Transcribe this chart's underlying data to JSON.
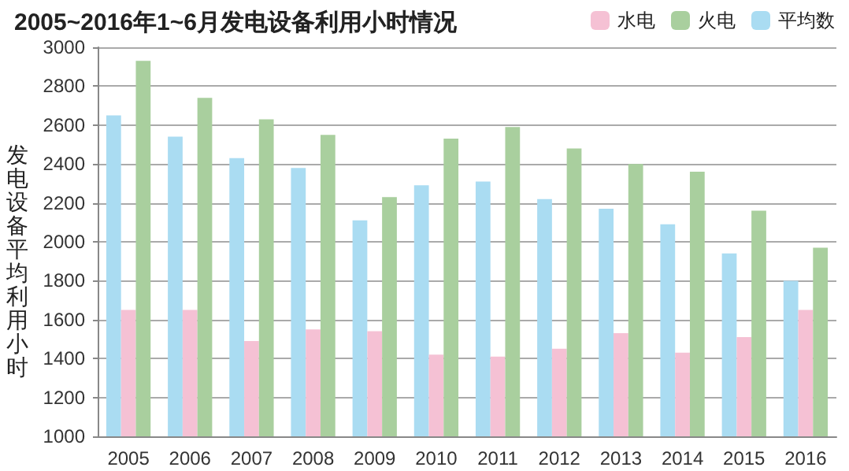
{
  "chart_data": {
    "type": "bar",
    "title": "2005~2016年1~6月发电设备利用小时情况",
    "ylabel": "发电设备平均利用小时",
    "categories": [
      "2005",
      "2006",
      "2007",
      "2008",
      "2009",
      "2010",
      "2011",
      "2012",
      "2013",
      "2014",
      "2015",
      "2016"
    ],
    "series": [
      {
        "name": "平均数",
        "color": "#aadcf2",
        "values": [
          2650,
          2540,
          2430,
          2380,
          2110,
          2290,
          2310,
          2220,
          2170,
          2090,
          1940,
          1800
        ]
      },
      {
        "name": "水电",
        "color": "#f5c1d4",
        "values": [
          1650,
          1650,
          1490,
          1550,
          1540,
          1420,
          1410,
          1450,
          1530,
          1430,
          1510,
          1650
        ]
      },
      {
        "name": "火电",
        "color": "#a9cf9e",
        "values": [
          2930,
          2740,
          2630,
          2550,
          2230,
          2530,
          2590,
          2480,
          2400,
          2360,
          2160,
          1970
        ]
      }
    ],
    "ylim": [
      1000,
      3000
    ],
    "yticks": [
      1000,
      1200,
      1400,
      1600,
      1800,
      2000,
      2200,
      2400,
      2600,
      2800,
      3000
    ],
    "grid": "y",
    "legend": "top right"
  }
}
